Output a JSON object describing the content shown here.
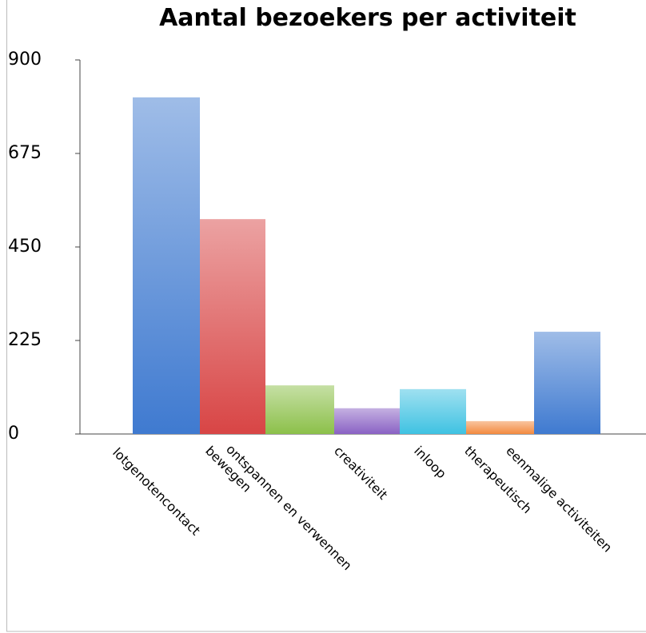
{
  "chart_data": {
    "type": "bar",
    "title": "Aantal bezoekers per activiteit",
    "categories": [
      "lotgenotencontact",
      "bewegen",
      "ontspannen en verwennen",
      "creativiteit",
      "inloop",
      "therapeutisch",
      "eenmalige activiteiten"
    ],
    "values": [
      810,
      517,
      117,
      62,
      108,
      31,
      246
    ],
    "colors": [
      "#3f7ad0",
      "#d84545",
      "#8cc04a",
      "#8a62c4",
      "#3fc2e2",
      "#f38a3f",
      "#3f7ad0"
    ],
    "ylim": [
      0,
      900
    ],
    "yticks": [
      0,
      225,
      450,
      675,
      900
    ],
    "grid": false
  }
}
